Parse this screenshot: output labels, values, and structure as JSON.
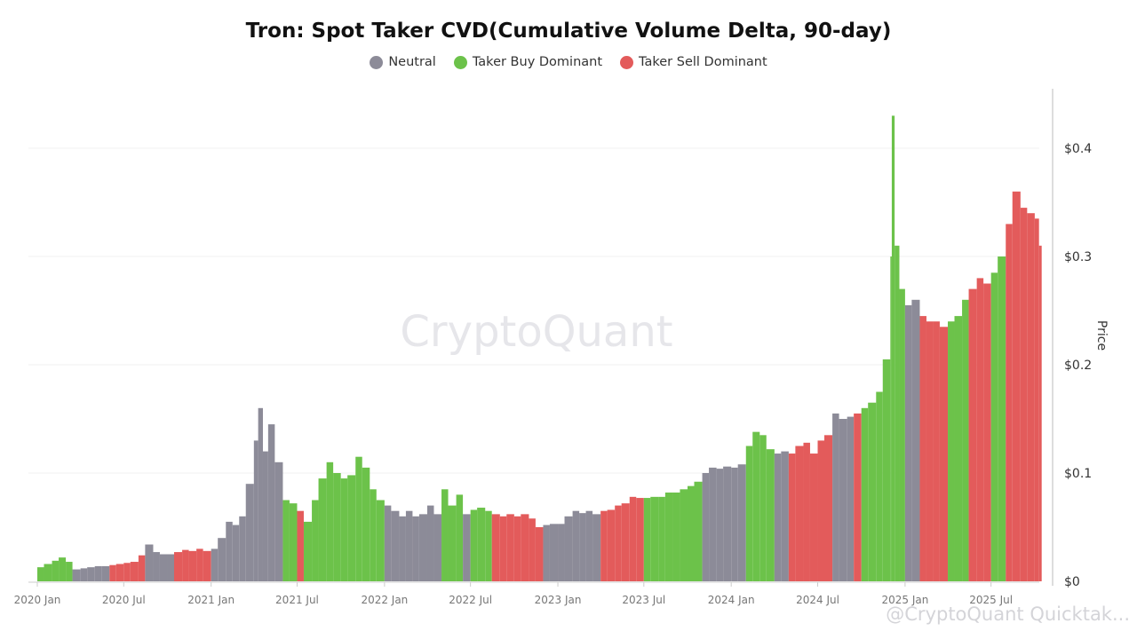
{
  "chart_data": {
    "type": "bar",
    "title": "Tron: Spot Taker CVD(Cumulative Volume Delta, 90-day)",
    "ylabel": "Price",
    "y_axis_side": "right",
    "ylim": [
      0,
      0.45
    ],
    "yticks": [
      "$0",
      "$0.1",
      "$0.2",
      "$0.3",
      "$0.4"
    ],
    "ytick_values": [
      0,
      0.1,
      0.2,
      0.3,
      0.4
    ],
    "xticks": [
      "2020 Jan",
      "2020 Jul",
      "2021 Jan",
      "2021 Jul",
      "2022 Jan",
      "2022 Jul",
      "2023 Jan",
      "2023 Jul",
      "2024 Jan",
      "2024 Jul",
      "2025 Jan",
      "2025 Jul"
    ],
    "xtick_dates": [
      "2020-01-01",
      "2020-07-01",
      "2021-01-01",
      "2021-07-01",
      "2022-01-01",
      "2022-07-01",
      "2023-01-01",
      "2023-07-01",
      "2024-01-01",
      "2024-07-01",
      "2025-01-01",
      "2025-07-01"
    ],
    "grid": true,
    "legend_position": "top",
    "legend": [
      {
        "key": "N",
        "name": "Neutral",
        "color": "#8c8b98"
      },
      {
        "key": "B",
        "name": "Taker Buy Dominant",
        "color": "#6cc24a"
      },
      {
        "key": "S",
        "name": "Taker Sell Dominant",
        "color": "#e35b5b"
      }
    ],
    "points": [
      [
        "2020-01-01",
        0.013,
        "B"
      ],
      [
        "2020-01-15",
        0.016,
        "B"
      ],
      [
        "2020-02-01",
        0.019,
        "B"
      ],
      [
        "2020-02-15",
        0.022,
        "B"
      ],
      [
        "2020-03-01",
        0.018,
        "B"
      ],
      [
        "2020-03-15",
        0.011,
        "N"
      ],
      [
        "2020-04-01",
        0.012,
        "N"
      ],
      [
        "2020-04-15",
        0.013,
        "N"
      ],
      [
        "2020-05-01",
        0.014,
        "N"
      ],
      [
        "2020-05-15",
        0.014,
        "N"
      ],
      [
        "2020-06-01",
        0.015,
        "S"
      ],
      [
        "2020-06-15",
        0.016,
        "S"
      ],
      [
        "2020-07-01",
        0.017,
        "S"
      ],
      [
        "2020-07-15",
        0.018,
        "S"
      ],
      [
        "2020-08-01",
        0.024,
        "S"
      ],
      [
        "2020-08-15",
        0.034,
        "N"
      ],
      [
        "2020-09-01",
        0.027,
        "N"
      ],
      [
        "2020-09-15",
        0.025,
        "N"
      ],
      [
        "2020-10-01",
        0.025,
        "N"
      ],
      [
        "2020-10-15",
        0.027,
        "S"
      ],
      [
        "2020-11-01",
        0.029,
        "S"
      ],
      [
        "2020-11-15",
        0.028,
        "S"
      ],
      [
        "2020-12-01",
        0.03,
        "S"
      ],
      [
        "2020-12-15",
        0.028,
        "S"
      ],
      [
        "2021-01-01",
        0.03,
        "N"
      ],
      [
        "2021-01-15",
        0.04,
        "N"
      ],
      [
        "2021-02-01",
        0.055,
        "N"
      ],
      [
        "2021-02-15",
        0.052,
        "N"
      ],
      [
        "2021-03-01",
        0.06,
        "N"
      ],
      [
        "2021-03-15",
        0.09,
        "N"
      ],
      [
        "2021-04-01",
        0.13,
        "N"
      ],
      [
        "2021-04-10",
        0.16,
        "N"
      ],
      [
        "2021-04-20",
        0.12,
        "N"
      ],
      [
        "2021-05-01",
        0.145,
        "N"
      ],
      [
        "2021-05-15",
        0.11,
        "N"
      ],
      [
        "2021-06-01",
        0.075,
        "B"
      ],
      [
        "2021-06-15",
        0.072,
        "B"
      ],
      [
        "2021-07-01",
        0.065,
        "S"
      ],
      [
        "2021-07-15",
        0.055,
        "B"
      ],
      [
        "2021-08-01",
        0.075,
        "B"
      ],
      [
        "2021-08-15",
        0.095,
        "B"
      ],
      [
        "2021-09-01",
        0.11,
        "B"
      ],
      [
        "2021-09-15",
        0.1,
        "B"
      ],
      [
        "2021-10-01",
        0.095,
        "B"
      ],
      [
        "2021-10-15",
        0.098,
        "B"
      ],
      [
        "2021-11-01",
        0.115,
        "B"
      ],
      [
        "2021-11-15",
        0.105,
        "B"
      ],
      [
        "2021-12-01",
        0.085,
        "B"
      ],
      [
        "2021-12-15",
        0.075,
        "B"
      ],
      [
        "2022-01-01",
        0.07,
        "N"
      ],
      [
        "2022-01-15",
        0.065,
        "N"
      ],
      [
        "2022-02-01",
        0.06,
        "N"
      ],
      [
        "2022-02-15",
        0.065,
        "N"
      ],
      [
        "2022-03-01",
        0.06,
        "N"
      ],
      [
        "2022-03-15",
        0.062,
        "N"
      ],
      [
        "2022-04-01",
        0.07,
        "N"
      ],
      [
        "2022-04-15",
        0.062,
        "N"
      ],
      [
        "2022-05-01",
        0.085,
        "B"
      ],
      [
        "2022-05-15",
        0.07,
        "B"
      ],
      [
        "2022-06-01",
        0.08,
        "B"
      ],
      [
        "2022-06-15",
        0.062,
        "N"
      ],
      [
        "2022-07-01",
        0.066,
        "B"
      ],
      [
        "2022-07-15",
        0.068,
        "B"
      ],
      [
        "2022-08-01",
        0.065,
        "B"
      ],
      [
        "2022-08-15",
        0.062,
        "S"
      ],
      [
        "2022-09-01",
        0.06,
        "S"
      ],
      [
        "2022-09-15",
        0.062,
        "S"
      ],
      [
        "2022-10-01",
        0.06,
        "S"
      ],
      [
        "2022-10-15",
        0.062,
        "S"
      ],
      [
        "2022-11-01",
        0.058,
        "S"
      ],
      [
        "2022-11-15",
        0.05,
        "S"
      ],
      [
        "2022-12-01",
        0.052,
        "N"
      ],
      [
        "2022-12-15",
        0.053,
        "N"
      ],
      [
        "2023-01-01",
        0.053,
        "N"
      ],
      [
        "2023-01-15",
        0.06,
        "N"
      ],
      [
        "2023-02-01",
        0.065,
        "N"
      ],
      [
        "2023-02-15",
        0.063,
        "N"
      ],
      [
        "2023-03-01",
        0.065,
        "N"
      ],
      [
        "2023-03-15",
        0.062,
        "N"
      ],
      [
        "2023-04-01",
        0.065,
        "S"
      ],
      [
        "2023-04-15",
        0.066,
        "S"
      ],
      [
        "2023-05-01",
        0.07,
        "S"
      ],
      [
        "2023-05-15",
        0.072,
        "S"
      ],
      [
        "2023-06-01",
        0.078,
        "S"
      ],
      [
        "2023-06-15",
        0.077,
        "S"
      ],
      [
        "2023-07-01",
        0.077,
        "B"
      ],
      [
        "2023-07-15",
        0.078,
        "B"
      ],
      [
        "2023-08-01",
        0.078,
        "B"
      ],
      [
        "2023-08-15",
        0.082,
        "B"
      ],
      [
        "2023-09-01",
        0.082,
        "B"
      ],
      [
        "2023-09-15",
        0.085,
        "B"
      ],
      [
        "2023-10-01",
        0.088,
        "B"
      ],
      [
        "2023-10-15",
        0.092,
        "B"
      ],
      [
        "2023-11-01",
        0.1,
        "N"
      ],
      [
        "2023-11-15",
        0.105,
        "N"
      ],
      [
        "2023-12-01",
        0.104,
        "N"
      ],
      [
        "2023-12-15",
        0.106,
        "N"
      ],
      [
        "2024-01-01",
        0.105,
        "N"
      ],
      [
        "2024-01-15",
        0.108,
        "N"
      ],
      [
        "2024-02-01",
        0.125,
        "B"
      ],
      [
        "2024-02-15",
        0.138,
        "B"
      ],
      [
        "2024-03-01",
        0.135,
        "B"
      ],
      [
        "2024-03-15",
        0.122,
        "B"
      ],
      [
        "2024-04-01",
        0.118,
        "N"
      ],
      [
        "2024-04-15",
        0.12,
        "N"
      ],
      [
        "2024-05-01",
        0.118,
        "S"
      ],
      [
        "2024-05-15",
        0.125,
        "S"
      ],
      [
        "2024-06-01",
        0.128,
        "S"
      ],
      [
        "2024-06-15",
        0.118,
        "S"
      ],
      [
        "2024-07-01",
        0.13,
        "S"
      ],
      [
        "2024-07-15",
        0.135,
        "S"
      ],
      [
        "2024-08-01",
        0.155,
        "N"
      ],
      [
        "2024-08-15",
        0.15,
        "N"
      ],
      [
        "2024-09-01",
        0.152,
        "N"
      ],
      [
        "2024-09-15",
        0.155,
        "S"
      ],
      [
        "2024-10-01",
        0.16,
        "B"
      ],
      [
        "2024-10-15",
        0.165,
        "B"
      ],
      [
        "2024-11-01",
        0.175,
        "B"
      ],
      [
        "2024-11-15",
        0.205,
        "B"
      ],
      [
        "2024-12-01",
        0.3,
        "B"
      ],
      [
        "2024-12-04",
        0.43,
        "B"
      ],
      [
        "2024-12-10",
        0.31,
        "B"
      ],
      [
        "2024-12-20",
        0.27,
        "B"
      ],
      [
        "2025-01-01",
        0.255,
        "N"
      ],
      [
        "2025-01-15",
        0.26,
        "N"
      ],
      [
        "2025-02-01",
        0.245,
        "S"
      ],
      [
        "2025-02-15",
        0.24,
        "S"
      ],
      [
        "2025-03-01",
        0.24,
        "S"
      ],
      [
        "2025-03-15",
        0.235,
        "S"
      ],
      [
        "2025-04-01",
        0.24,
        "B"
      ],
      [
        "2025-04-15",
        0.245,
        "B"
      ],
      [
        "2025-05-01",
        0.26,
        "B"
      ],
      [
        "2025-05-15",
        0.27,
        "S"
      ],
      [
        "2025-06-01",
        0.28,
        "S"
      ],
      [
        "2025-06-15",
        0.275,
        "S"
      ],
      [
        "2025-07-01",
        0.285,
        "B"
      ],
      [
        "2025-07-15",
        0.3,
        "B"
      ],
      [
        "2025-08-01",
        0.33,
        "S"
      ],
      [
        "2025-08-15",
        0.36,
        "S"
      ],
      [
        "2025-09-01",
        0.345,
        "S"
      ],
      [
        "2025-09-15",
        0.34,
        "S"
      ],
      [
        "2025-10-01",
        0.335,
        "S"
      ],
      [
        "2025-10-10",
        0.31,
        "S"
      ]
    ]
  },
  "watermark": "CryptoQuant",
  "attribution": "@CryptoQuant Quicktak..."
}
